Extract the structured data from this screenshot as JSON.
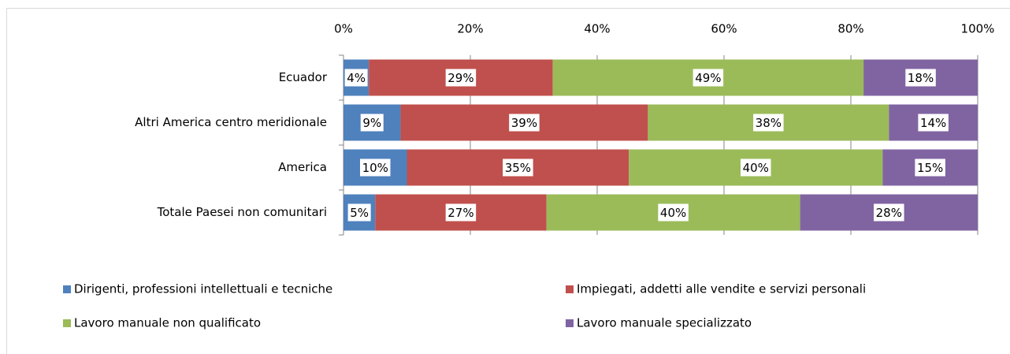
{
  "chart_data": {
    "type": "stacked-bar-horizontal",
    "categories": [
      "Ecuador",
      "Altri America centro meridionale",
      "America",
      "Totale Paesei non comunitari"
    ],
    "series": [
      {
        "name": "Dirigenti, professioni intellettuali e tecniche",
        "color": "#4f81bd",
        "values": [
          4,
          9,
          10,
          5
        ],
        "value_labels": [
          "4%",
          "9%",
          "10%",
          "5%"
        ]
      },
      {
        "name": "Impiegati, addetti alle vendite e servizi personali",
        "color": "#c0504d",
        "values": [
          29,
          39,
          35,
          27
        ],
        "value_labels": [
          "29%",
          "39%",
          "35%",
          "27%"
        ]
      },
      {
        "name": "Lavoro manuale non qualificato",
        "color": "#9bbb59",
        "values": [
          49,
          38,
          40,
          40
        ],
        "value_labels": [
          "49%",
          "38%",
          "40%",
          "40%"
        ]
      },
      {
        "name": "Lavoro manuale specializzato",
        "color": "#8064a2",
        "values": [
          18,
          14,
          15,
          28
        ],
        "value_labels": [
          "18%",
          "14%",
          "15%",
          "28%"
        ]
      }
    ],
    "xlim": [
      0,
      100
    ],
    "xticks": [
      {
        "value": 0,
        "label": "0%"
      },
      {
        "value": 20,
        "label": "20%"
      },
      {
        "value": 40,
        "label": "40%"
      },
      {
        "value": 60,
        "label": "60%"
      },
      {
        "value": 80,
        "label": "80%"
      },
      {
        "value": 100,
        "label": "100%"
      }
    ],
    "grid": true,
    "legend": "bottom"
  }
}
